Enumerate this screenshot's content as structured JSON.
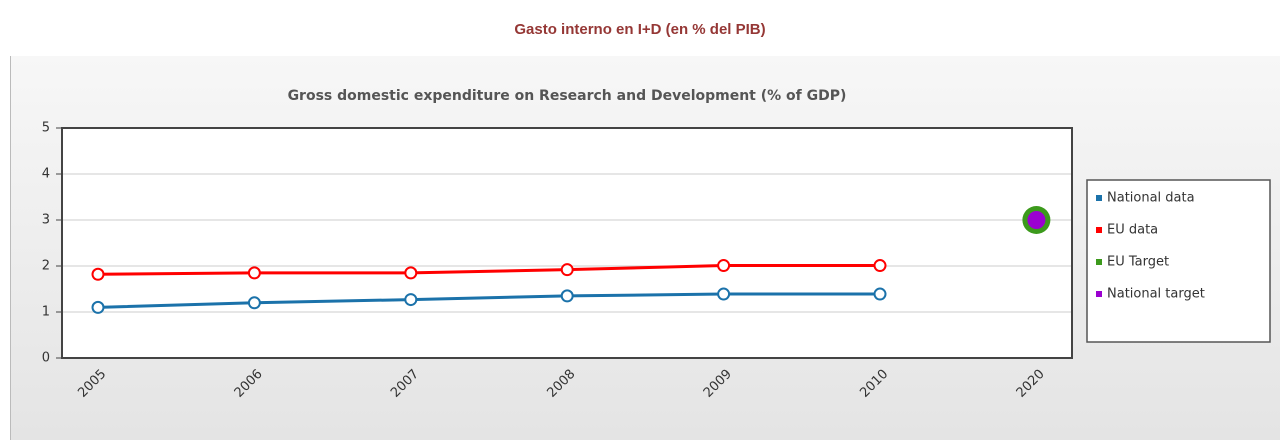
{
  "page_title": "Gasto interno en I+D (en % del PIB)",
  "chart_data": {
    "type": "line",
    "title": "Gross domestic expenditure on Research and Development (% of GDP)",
    "categories": [
      "2005",
      "2006",
      "2007",
      "2008",
      "2009",
      "2010",
      "2020"
    ],
    "series": [
      {
        "name": "National data",
        "color": "#1b72aa",
        "values": [
          1.1,
          1.2,
          1.27,
          1.35,
          1.39,
          1.39,
          null
        ]
      },
      {
        "name": "EU data",
        "color": "#ff0000",
        "values": [
          1.82,
          1.85,
          1.85,
          1.92,
          2.01,
          2.01,
          null
        ]
      },
      {
        "name": "EU Target",
        "color": "#3c9a1c",
        "values": [
          null,
          null,
          null,
          null,
          null,
          null,
          3
        ]
      },
      {
        "name": "National target",
        "color": "#9b00d0",
        "values": [
          null,
          null,
          null,
          null,
          null,
          null,
          3
        ]
      }
    ],
    "ylim": [
      0,
      5
    ],
    "yticks": [
      0,
      1,
      2,
      3,
      4,
      5
    ],
    "grid": true,
    "legend": "right"
  }
}
